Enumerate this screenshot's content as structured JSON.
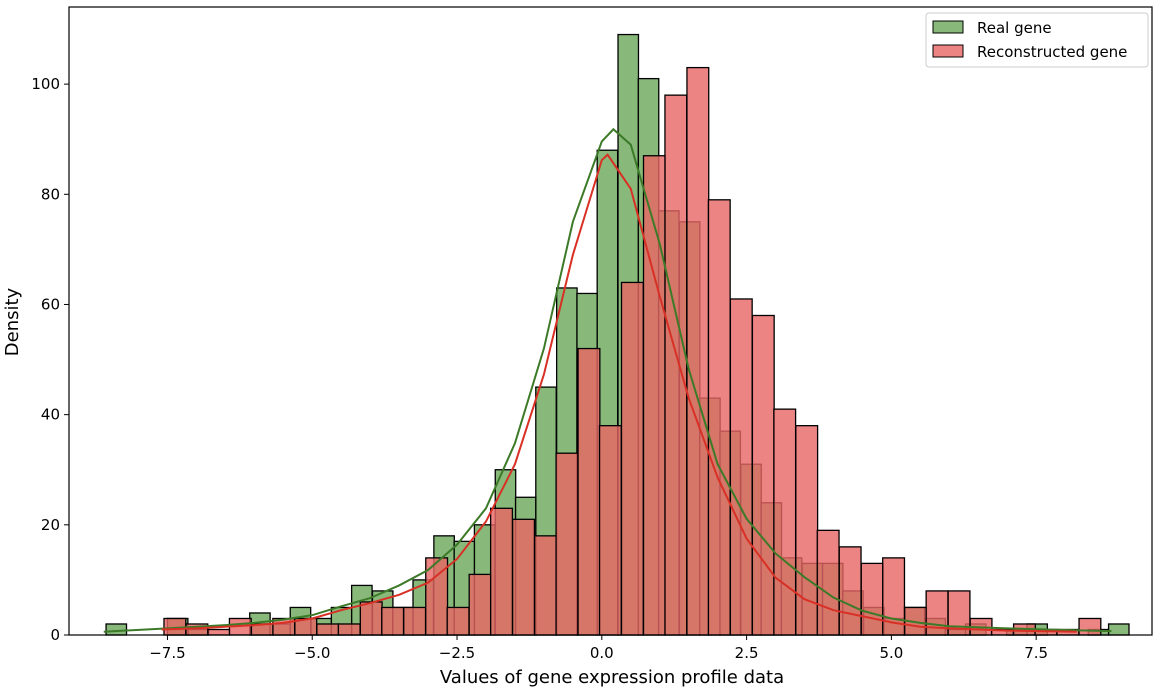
{
  "chart_data": {
    "type": "histogram",
    "xlabel": "Values of gene expression profile data",
    "ylabel": "Density",
    "xlim": [
      -9.2,
      9.5
    ],
    "ylim": [
      0,
      114
    ],
    "xticks": [
      -7.5,
      -5.0,
      -2.5,
      0.0,
      2.5,
      5.0,
      7.5
    ],
    "xtick_labels": [
      "−7.5",
      "−5.0",
      "−2.5",
      "0.0",
      "2.5",
      "5.0",
      "7.5"
    ],
    "yticks": [
      0,
      20,
      40,
      60,
      80,
      100
    ],
    "ytick_labels": [
      "0",
      "20",
      "40",
      "60",
      "80",
      "100"
    ],
    "legend_position": "top-right",
    "series": [
      {
        "name": "Real gene",
        "color": "#2e7d1e",
        "fill": "#6aa85a",
        "bin_width": 0.353,
        "bins": [
          [
            -8.56,
            2
          ],
          [
            -7.5,
            3
          ],
          [
            -7.14,
            1
          ],
          [
            -6.08,
            4
          ],
          [
            -5.73,
            2
          ],
          [
            -5.38,
            5
          ],
          [
            -5.02,
            3
          ],
          [
            -4.67,
            5
          ],
          [
            -4.32,
            9
          ],
          [
            -3.96,
            8
          ],
          [
            -3.61,
            5
          ],
          [
            -3.26,
            10
          ],
          [
            -2.9,
            18
          ],
          [
            -2.55,
            17
          ],
          [
            -2.2,
            20
          ],
          [
            -1.84,
            30
          ],
          [
            -1.49,
            25
          ],
          [
            -1.14,
            45
          ],
          [
            -0.78,
            63
          ],
          [
            -0.43,
            62
          ],
          [
            -0.08,
            88
          ],
          [
            0.28,
            109
          ],
          [
            0.63,
            101
          ],
          [
            0.98,
            77
          ],
          [
            1.34,
            75
          ],
          [
            1.69,
            43
          ],
          [
            2.04,
            37
          ],
          [
            2.4,
            31
          ],
          [
            2.75,
            24
          ],
          [
            3.1,
            14
          ],
          [
            3.46,
            13
          ],
          [
            3.81,
            13
          ],
          [
            4.16,
            8
          ],
          [
            4.52,
            5
          ],
          [
            4.87,
            3
          ],
          [
            5.22,
            5
          ],
          [
            5.58,
            3
          ],
          [
            5.93,
            1
          ],
          [
            6.28,
            2
          ],
          [
            6.99,
            1
          ],
          [
            7.34,
            2
          ],
          [
            8.4,
            1
          ],
          [
            8.75,
            2
          ]
        ]
      },
      {
        "name": "Reconstructed gene",
        "color": "#e03030",
        "fill": "#e86565",
        "bin_width": 0.376,
        "bins": [
          [
            -7.56,
            3
          ],
          [
            -7.18,
            2
          ],
          [
            -6.8,
            1
          ],
          [
            -6.43,
            3
          ],
          [
            -6.05,
            2
          ],
          [
            -5.68,
            3
          ],
          [
            -5.3,
            3
          ],
          [
            -4.92,
            2
          ],
          [
            -4.55,
            2
          ],
          [
            -4.17,
            6
          ],
          [
            -3.8,
            5
          ],
          [
            -3.42,
            5
          ],
          [
            -3.04,
            14
          ],
          [
            -2.67,
            5
          ],
          [
            -2.29,
            11
          ],
          [
            -1.92,
            23
          ],
          [
            -1.54,
            21
          ],
          [
            -1.16,
            18
          ],
          [
            -0.79,
            33
          ],
          [
            -0.41,
            52
          ],
          [
            -0.04,
            38
          ],
          [
            0.34,
            64
          ],
          [
            0.72,
            87
          ],
          [
            1.09,
            98
          ],
          [
            1.47,
            103
          ],
          [
            1.84,
            79
          ],
          [
            2.22,
            61
          ],
          [
            2.6,
            58
          ],
          [
            2.97,
            41
          ],
          [
            3.35,
            38
          ],
          [
            3.72,
            19
          ],
          [
            4.1,
            16
          ],
          [
            4.48,
            13
          ],
          [
            4.85,
            14
          ],
          [
            5.23,
            5
          ],
          [
            5.6,
            8
          ],
          [
            5.98,
            8
          ],
          [
            6.36,
            3
          ],
          [
            6.73,
            1
          ],
          [
            7.11,
            2
          ],
          [
            7.48,
            1
          ],
          [
            7.86,
            1
          ],
          [
            8.24,
            3
          ]
        ]
      }
    ],
    "kde": [
      {
        "name": "Real gene",
        "color": "#3c7a28",
        "points": [
          [
            -8.6,
            0.6
          ],
          [
            -7.5,
            1.2
          ],
          [
            -6.5,
            1.8
          ],
          [
            -6.0,
            2.2
          ],
          [
            -5.5,
            2.8
          ],
          [
            -5.0,
            3.6
          ],
          [
            -4.5,
            5.2
          ],
          [
            -4.0,
            6.7
          ],
          [
            -3.5,
            9.0
          ],
          [
            -3.0,
            11.8
          ],
          [
            -2.5,
            16.4
          ],
          [
            -2.0,
            23.0
          ],
          [
            -1.5,
            34.8
          ],
          [
            -1.0,
            52.0
          ],
          [
            -0.5,
            75.0
          ],
          [
            0.0,
            89.6
          ],
          [
            0.2,
            91.8
          ],
          [
            0.5,
            89.0
          ],
          [
            1.0,
            71.0
          ],
          [
            1.5,
            48.3
          ],
          [
            2.0,
            31.0
          ],
          [
            2.5,
            21.1
          ],
          [
            3.0,
            14.8
          ],
          [
            3.5,
            10.5
          ],
          [
            4.0,
            6.8
          ],
          [
            4.5,
            4.4
          ],
          [
            5.0,
            3.0
          ],
          [
            5.5,
            2.2
          ],
          [
            6.0,
            1.6
          ],
          [
            7.0,
            1.2
          ],
          [
            8.0,
            0.9
          ],
          [
            8.8,
            0.7
          ]
        ]
      },
      {
        "name": "Reconstructed gene",
        "color": "#d93025",
        "points": [
          [
            -7.6,
            1.0
          ],
          [
            -7.0,
            1.2
          ],
          [
            -6.5,
            1.5
          ],
          [
            -6.0,
            1.8
          ],
          [
            -5.5,
            2.2
          ],
          [
            -5.0,
            3.0
          ],
          [
            -4.5,
            4.5
          ],
          [
            -4.0,
            5.8
          ],
          [
            -3.5,
            7.3
          ],
          [
            -3.0,
            9.5
          ],
          [
            -2.5,
            13.8
          ],
          [
            -2.0,
            20.6
          ],
          [
            -1.5,
            31.0
          ],
          [
            -1.0,
            47.3
          ],
          [
            -0.5,
            69.0
          ],
          [
            0.0,
            86.2
          ],
          [
            0.1,
            87.2
          ],
          [
            0.5,
            81.0
          ],
          [
            1.0,
            61.5
          ],
          [
            1.5,
            43.0
          ],
          [
            2.0,
            28.6
          ],
          [
            2.5,
            17.5
          ],
          [
            3.0,
            10.4
          ],
          [
            3.5,
            6.5
          ],
          [
            4.0,
            4.5
          ],
          [
            4.5,
            3.4
          ],
          [
            5.0,
            2.3
          ],
          [
            5.5,
            1.5
          ],
          [
            6.0,
            1.2
          ],
          [
            7.0,
            0.8
          ],
          [
            8.2,
            0.6
          ]
        ]
      }
    ]
  }
}
